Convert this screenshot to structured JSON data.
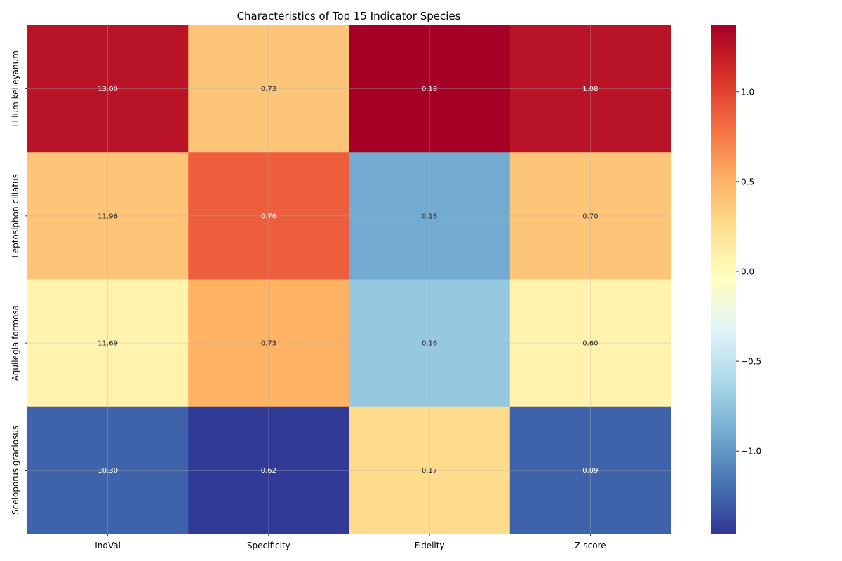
{
  "chart_data": {
    "type": "heatmap",
    "title": "Characteristics of Top 15 Indicator Species",
    "rows": [
      "Lilium kelleyanum",
      "Leptosiphon ciliatus",
      "Aquilegia formosa",
      "Sceloporus graciosus"
    ],
    "columns": [
      "IndVal",
      "Specificity",
      "Fidelity",
      "Z-score"
    ],
    "values": [
      [
        1.26,
        0.39,
        1.37,
        1.26
      ],
      [
        0.39,
        0.87,
        -0.9,
        0.39
      ],
      [
        0.06,
        0.5,
        -0.72,
        0.06
      ],
      [
        -1.26,
        -1.44,
        0.26,
        -1.26
      ]
    ],
    "annotations": [
      [
        "13.00",
        "0.73",
        "0.18",
        "1.08"
      ],
      [
        "11.96",
        "0.76",
        "0.16",
        "0.70"
      ],
      [
        "11.69",
        "0.73",
        "0.16",
        "0.60"
      ],
      [
        "10.30",
        "0.62",
        "0.17",
        "0.09"
      ]
    ],
    "colorbar": {
      "colormap": "RdYlBu_r",
      "range": [
        -1.46,
        1.37
      ],
      "ticks": [
        -1.0,
        -0.5,
        0.0,
        0.5,
        1.0
      ],
      "tick_labels": [
        "−1.0",
        "−0.5",
        "0.0",
        "0.5",
        "1.0"
      ]
    },
    "grid": true,
    "colors": {
      "annotation_dark_text": "#262626",
      "annotation_light_text": "#ffffff"
    }
  }
}
